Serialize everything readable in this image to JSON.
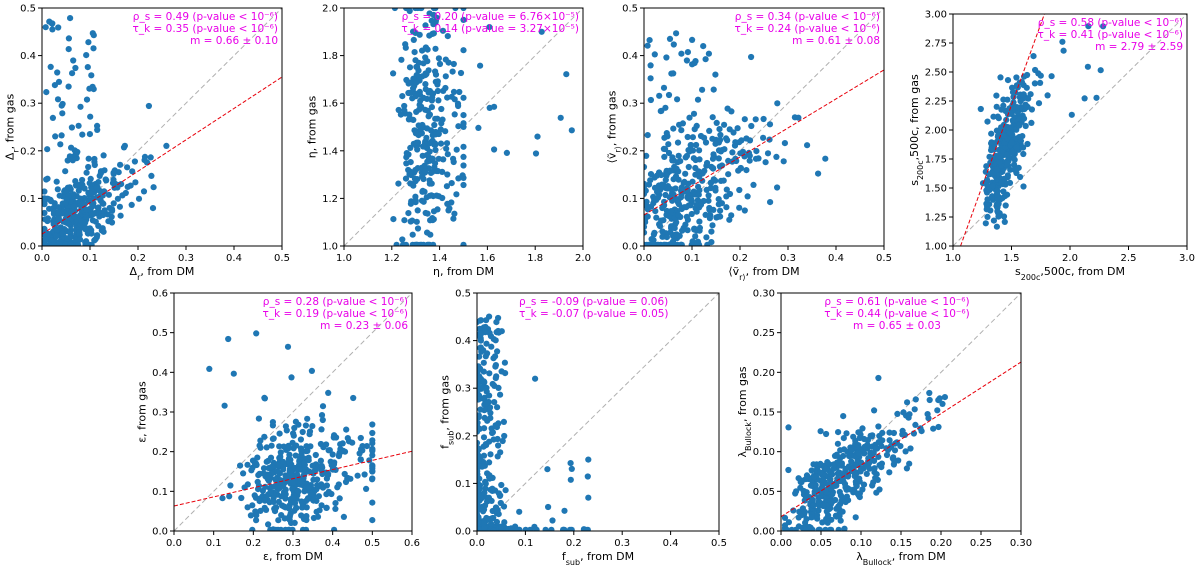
{
  "colors": {
    "point": "#1f77b4",
    "fit_line": "#e8000b",
    "identity_line": "#b0b0b0",
    "annotation": "#e800e8"
  },
  "chart_data": [
    {
      "type": "scatter",
      "id": "delta_r",
      "xlabel": "Δ_r, from DM",
      "ylabel": "Δ_r, from gas",
      "xlim": [
        0.0,
        0.5
      ],
      "ylim": [
        0.0,
        0.5
      ],
      "xticks": [
        "0.0",
        "0.1",
        "0.2",
        "0.3",
        "0.4",
        "0.5"
      ],
      "yticks": [
        "0.0",
        "0.1",
        "0.2",
        "0.3",
        "0.4",
        "0.5"
      ],
      "annotation_align": "right",
      "annotations": [
        "ρ_s = 0.49 (p-value < 10⁻⁶)",
        "τ_k = 0.35 (p-value < 10⁻⁶)",
        "m = 0.66 ± 0.10"
      ],
      "fit": {
        "slope": 0.66,
        "intercept": 0.025
      },
      "gen": {
        "seed": 11,
        "n": 380,
        "xmin": 0.005,
        "xmax": 0.34,
        "xmode": 0.05,
        "xspread": 0.05,
        "slope": 0.6,
        "intercept": 0.02,
        "noise": 0.045,
        "outliers": 60,
        "out_xmax": 0.12,
        "out_ymin": 0.15,
        "out_ymax": 0.48
      }
    },
    {
      "type": "scatter",
      "id": "eta",
      "xlabel": "η, from DM",
      "ylabel": "η, from gas",
      "xlim": [
        1.0,
        2.0
      ],
      "ylim": [
        1.0,
        2.0
      ],
      "xticks": [
        "1.0",
        "1.2",
        "1.4",
        "1.6",
        "1.8",
        "2.0"
      ],
      "yticks": [
        "1.0",
        "1.2",
        "1.4",
        "1.6",
        "1.8",
        "2.0"
      ],
      "annotation_align": "right",
      "annotations": [
        "ρ_s = 0.20 (p-value = 6.76×10⁻⁵)",
        "τ_k = 0.14 (p-value = 3.27×10⁻⁵)"
      ],
      "fit": null,
      "gen": {
        "seed": 23,
        "n": 300,
        "xmin": 1.15,
        "xmax": 1.5,
        "xmode": 1.32,
        "xspread": 0.07,
        "slope": 0.2,
        "intercept": 1.18,
        "noise": 0.28,
        "outliers": 16,
        "out_xmax": 1.99,
        "out_ymin": 1.3,
        "out_ymax": 1.95
      }
    },
    {
      "type": "scatter",
      "id": "vr",
      "xlabel": "⟨ṽ_r⟩, from DM",
      "ylabel": "⟨ṽ_r⟩, from gas",
      "xlim": [
        0.0,
        0.5
      ],
      "ylim": [
        0.0,
        0.5
      ],
      "xticks": [
        "0.0",
        "0.1",
        "0.2",
        "0.3",
        "0.4",
        "0.5"
      ],
      "yticks": [
        "0.0",
        "0.1",
        "0.2",
        "0.3",
        "0.4",
        "0.5"
      ],
      "annotation_align": "right",
      "annotations": [
        "ρ_s = 0.34 (p-value < 10⁻⁶)",
        "τ_k = 0.24 (p-value < 10⁻⁶)",
        "m = 0.61 ± 0.08"
      ],
      "fit": {
        "slope": 0.61,
        "intercept": 0.065
      },
      "gen": {
        "seed": 37,
        "n": 380,
        "xmin": 0.0,
        "xmax": 0.43,
        "xmode": 0.06,
        "xspread": 0.07,
        "slope": 0.55,
        "intercept": 0.06,
        "noise": 0.07,
        "outliers": 40,
        "out_xmax": 0.15,
        "out_ymin": 0.2,
        "out_ymax": 0.47
      }
    },
    {
      "type": "scatter",
      "id": "s200c",
      "xlabel": "s_200c,500c, from DM",
      "ylabel": "s_200c,500c, from gas",
      "xlim": [
        1.0,
        3.0
      ],
      "ylim": [
        1.0,
        3.0
      ],
      "xticks": [
        "1.0",
        "1.5",
        "2.0",
        "2.5",
        "3.0"
      ],
      "yticks": [
        "1.00",
        "1.25",
        "1.50",
        "1.75",
        "2.00",
        "2.25",
        "2.50",
        "2.75",
        "3.00"
      ],
      "annotation_align": "right",
      "annotations": [
        "ρ_s = 0.58 (p-value < 10⁻⁶)",
        "τ_k = 0.41 (p-value < 10⁻⁶)",
        "m = 2.79 ± 2.59"
      ],
      "fit": {
        "slope": 2.79,
        "intercept": -1.97
      },
      "gen": {
        "seed": 51,
        "n": 330,
        "xmin": 1.22,
        "xmax": 2.5,
        "xmode": 1.4,
        "xspread": 0.09,
        "slope": 1.9,
        "intercept": -0.95,
        "noise": 0.22,
        "outliers": 16,
        "out_xmax": 2.3,
        "out_ymin": 2.0,
        "out_ymax": 2.95
      }
    },
    {
      "type": "scatter",
      "id": "epsilon",
      "xlabel": "ε, from DM",
      "ylabel": "ε, from gas",
      "xlim": [
        0.0,
        0.6
      ],
      "ylim": [
        0.0,
        0.6
      ],
      "xticks": [
        "0.0",
        "0.1",
        "0.2",
        "0.3",
        "0.4",
        "0.5",
        "0.6"
      ],
      "yticks": [
        "0.0",
        "0.1",
        "0.2",
        "0.3",
        "0.4",
        "0.5",
        "0.6"
      ],
      "annotation_align": "right",
      "annotations": [
        "ρ_s = 0.28 (p-value < 10⁻⁶)",
        "τ_k = 0.19 (p-value < 10⁻⁶)",
        "m = 0.23 ± 0.06"
      ],
      "fit": {
        "slope": 0.23,
        "intercept": 0.063
      },
      "gen": {
        "seed": 67,
        "n": 400,
        "xmin": 0.08,
        "xmax": 0.5,
        "xmode": 0.27,
        "xspread": 0.08,
        "slope": 0.25,
        "intercept": 0.06,
        "noise": 0.06,
        "outliers": 12,
        "out_xmax": 0.45,
        "out_ymin": 0.25,
        "out_ymax": 0.52
      }
    },
    {
      "type": "scatter",
      "id": "fsub",
      "xlabel": "f_sub, from DM",
      "ylabel": "f_sub, from gas",
      "xlim": [
        0.0,
        0.5
      ],
      "ylim": [
        0.0,
        0.5
      ],
      "xticks": [
        "0.0",
        "0.1",
        "0.2",
        "0.3",
        "0.4",
        "0.5"
      ],
      "yticks": [
        "0.0",
        "0.1",
        "0.2",
        "0.3",
        "0.4",
        "0.5"
      ],
      "annotation_align": "left",
      "annotations": [
        "ρ_s = -0.09 (p-value = 0.06)",
        "τ_k = -0.07 (p-value = 0.05)"
      ],
      "fit": null,
      "gen": {
        "seed": 79,
        "n": 260,
        "xmin": 0.0,
        "xmax": 0.23,
        "xmode": 0.01,
        "xspread": 0.03,
        "slope": 0.0,
        "intercept": 0.0,
        "noise": 0.0,
        "outliers": 150,
        "out_xmax": 0.06,
        "out_ymin": 0.0,
        "out_ymax": 0.46,
        "fsub": true
      }
    },
    {
      "type": "scatter",
      "id": "lambda",
      "xlabel": "λ_Bullock, from DM",
      "ylabel": "λ_Bullock, from gas",
      "xlim": [
        0.0,
        0.3
      ],
      "ylim": [
        0.0,
        0.3
      ],
      "xticks": [
        "0.00",
        "0.05",
        "0.10",
        "0.15",
        "0.20",
        "0.25",
        "0.30"
      ],
      "yticks": [
        "0.00",
        "0.05",
        "0.10",
        "0.15",
        "0.20",
        "0.25",
        "0.30"
      ],
      "annotation_align": "center",
      "annotations": [
        "ρ_s = 0.61 (p-value < 10⁻⁶)",
        "τ_k = 0.44 (p-value < 10⁻⁶)",
        "m = 0.65 ± 0.03"
      ],
      "fit": {
        "slope": 0.65,
        "intercept": 0.018
      },
      "gen": {
        "seed": 97,
        "n": 400,
        "xmin": 0.005,
        "xmax": 0.28,
        "xmode": 0.06,
        "xspread": 0.04,
        "slope": 0.72,
        "intercept": 0.012,
        "noise": 0.025,
        "outliers": 6,
        "out_xmax": 0.2,
        "out_ymin": 0.12,
        "out_ymax": 0.2
      }
    }
  ]
}
